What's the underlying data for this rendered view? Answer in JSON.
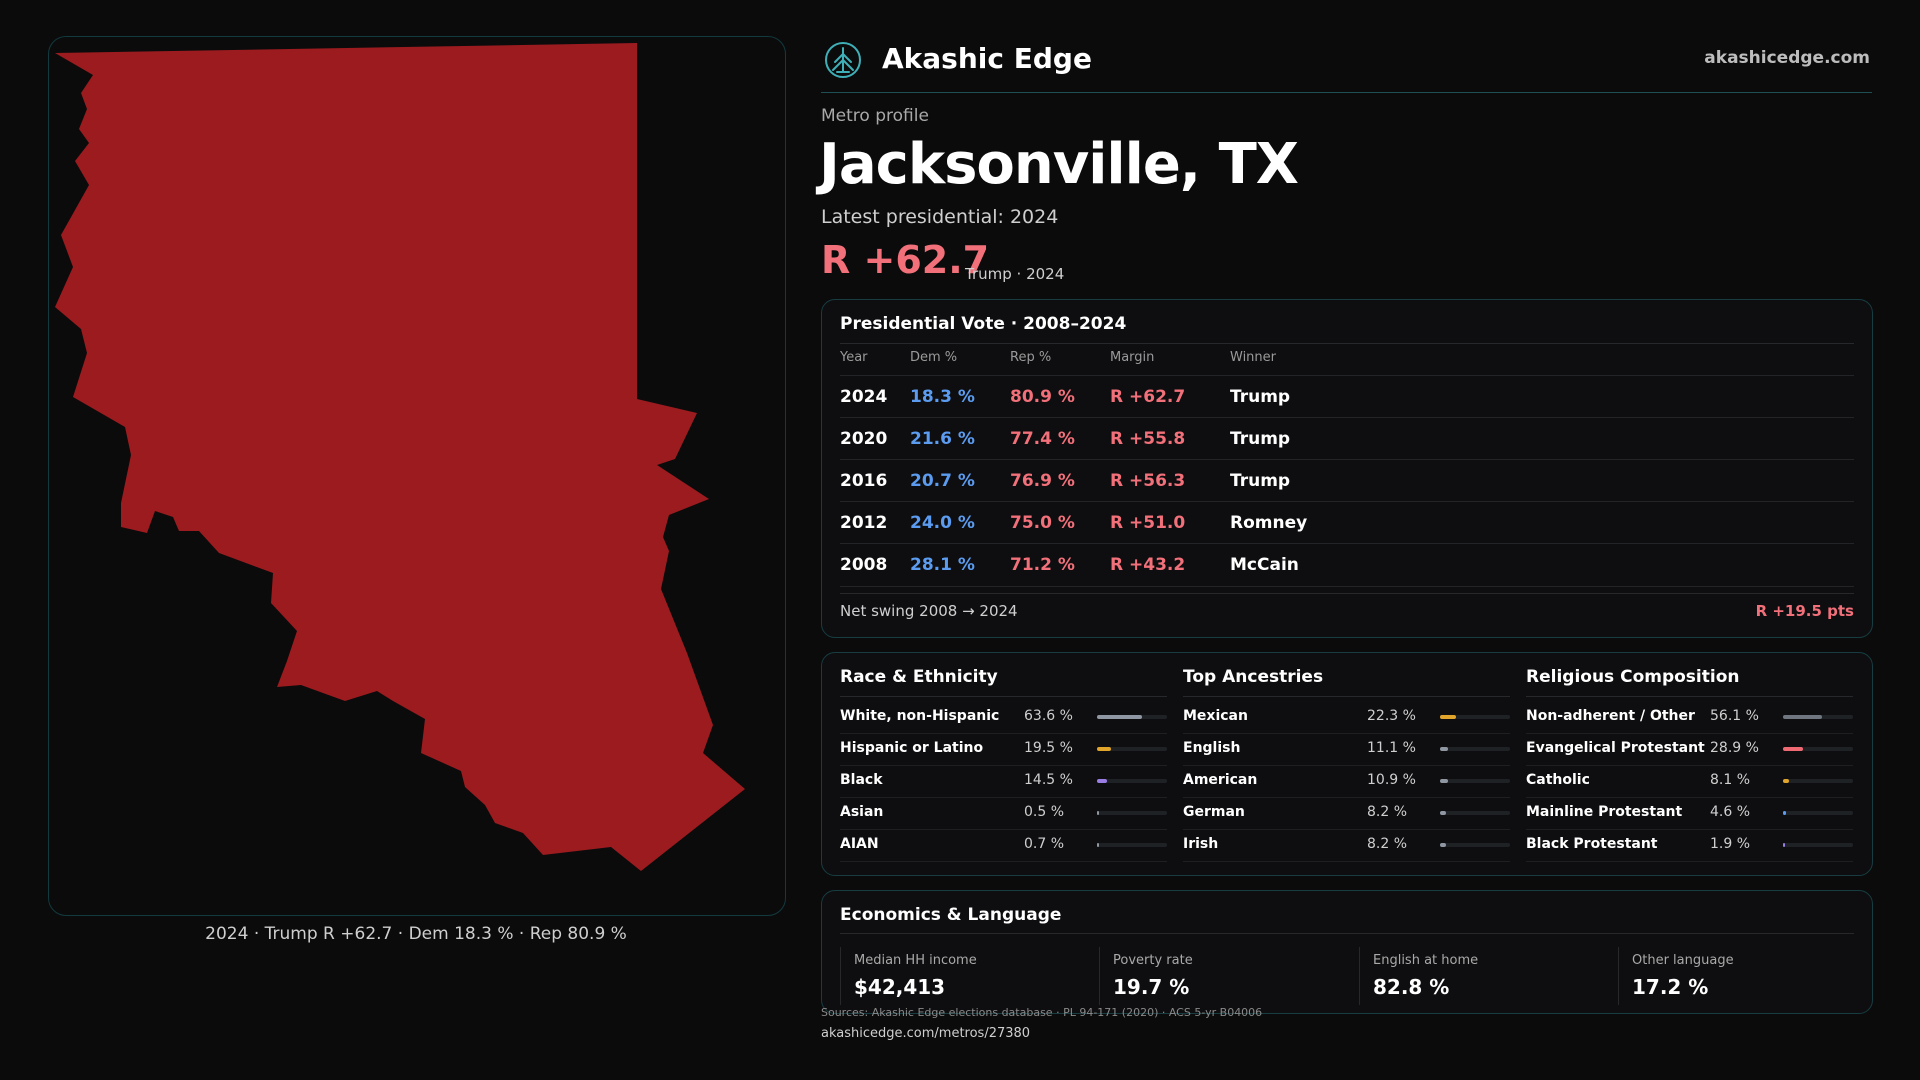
{
  "map": {
    "caption": "2024 · Trump R +62.7 · Dem 18.3 % · Rep 80.9 %",
    "fill_color": "#9b1b1f"
  },
  "header": {
    "brand": "Akashic Edge",
    "site": "akashicedge.com",
    "logo_icon": "tree-globe-logo"
  },
  "profile": {
    "eyebrow": "Metro profile",
    "title": "Jacksonville, TX",
    "latest_label": "Latest presidential: 2024",
    "margin": "R +62.7",
    "margin_sub": "Trump · 2024"
  },
  "vote": {
    "title": "Presidential Vote · 2008–2024",
    "headers": {
      "year": "Year",
      "dem": "Dem %",
      "rep": "Rep %",
      "margin": "Margin",
      "winner": "Winner"
    },
    "rows": [
      {
        "year": "2024",
        "dem": "18.3 %",
        "rep": "80.9 %",
        "margin": "R +62.7",
        "winner": "Trump"
      },
      {
        "year": "2020",
        "dem": "21.6 %",
        "rep": "77.4 %",
        "margin": "R +55.8",
        "winner": "Trump"
      },
      {
        "year": "2016",
        "dem": "20.7 %",
        "rep": "76.9 %",
        "margin": "R +56.3",
        "winner": "Trump"
      },
      {
        "year": "2012",
        "dem": "24.0 %",
        "rep": "75.0 %",
        "margin": "R +51.0",
        "winner": "Romney"
      },
      {
        "year": "2008",
        "dem": "28.1 %",
        "rep": "71.2 %",
        "margin": "R +43.2",
        "winner": "McCain"
      }
    ],
    "swing_label": "Net swing 2008 → 2024",
    "swing_value": "R +19.5 pts"
  },
  "demographics": {
    "race": {
      "title": "Race & Ethnicity",
      "rows": [
        {
          "label": "White, non-Hispanic",
          "value": "63.6 %",
          "pct": 63.6,
          "color": "#8f97a3"
        },
        {
          "label": "Hispanic or Latino",
          "value": "19.5 %",
          "pct": 19.5,
          "color": "#e0a52a"
        },
        {
          "label": "Black",
          "value": "14.5 %",
          "pct": 14.5,
          "color": "#9a7ee6"
        },
        {
          "label": "Asian",
          "value": "0.5 %",
          "pct": 0.5,
          "color": "#8f97a3"
        },
        {
          "label": "AIAN",
          "value": "0.7 %",
          "pct": 0.7,
          "color": "#8f97a3"
        }
      ]
    },
    "ancestry": {
      "title": "Top Ancestries",
      "rows": [
        {
          "label": "Mexican",
          "value": "22.3 %",
          "pct": 22.3,
          "color": "#e0a52a"
        },
        {
          "label": "English",
          "value": "11.1 %",
          "pct": 11.1,
          "color": "#8f97a3"
        },
        {
          "label": "American",
          "value": "10.9 %",
          "pct": 10.9,
          "color": "#8f97a3"
        },
        {
          "label": "German",
          "value": "8.2 %",
          "pct": 8.2,
          "color": "#8f97a3"
        },
        {
          "label": "Irish",
          "value": "8.2 %",
          "pct": 8.2,
          "color": "#8f97a3"
        }
      ]
    },
    "religion": {
      "title": "Religious Composition",
      "rows": [
        {
          "label": "Non-adherent / Other",
          "value": "56.1 %",
          "pct": 56.1,
          "color": "#6f7680"
        },
        {
          "label": "Evangelical Protestant",
          "value": "28.9 %",
          "pct": 28.9,
          "color": "#f06a74"
        },
        {
          "label": "Catholic",
          "value": "8.1 %",
          "pct": 8.1,
          "color": "#e0a52a"
        },
        {
          "label": "Mainline Protestant",
          "value": "4.6 %",
          "pct": 4.6,
          "color": "#5b9cf0"
        },
        {
          "label": "Black Protestant",
          "value": "1.9 %",
          "pct": 1.9,
          "color": "#9a7ee6"
        }
      ]
    }
  },
  "economics": {
    "title": "Economics & Language",
    "stats": [
      {
        "label": "Median HH income",
        "value": "$42,413"
      },
      {
        "label": "Poverty rate",
        "value": "19.7 %"
      },
      {
        "label": "English at home",
        "value": "82.8 %"
      },
      {
        "label": "Other language",
        "value": "17.2 %"
      }
    ]
  },
  "footer": {
    "sources": "Sources: Akashic Edge elections database · PL 94-171 (2020) · ACS 5-yr B04006",
    "url": "akashicedge.com/metros/27380"
  }
}
